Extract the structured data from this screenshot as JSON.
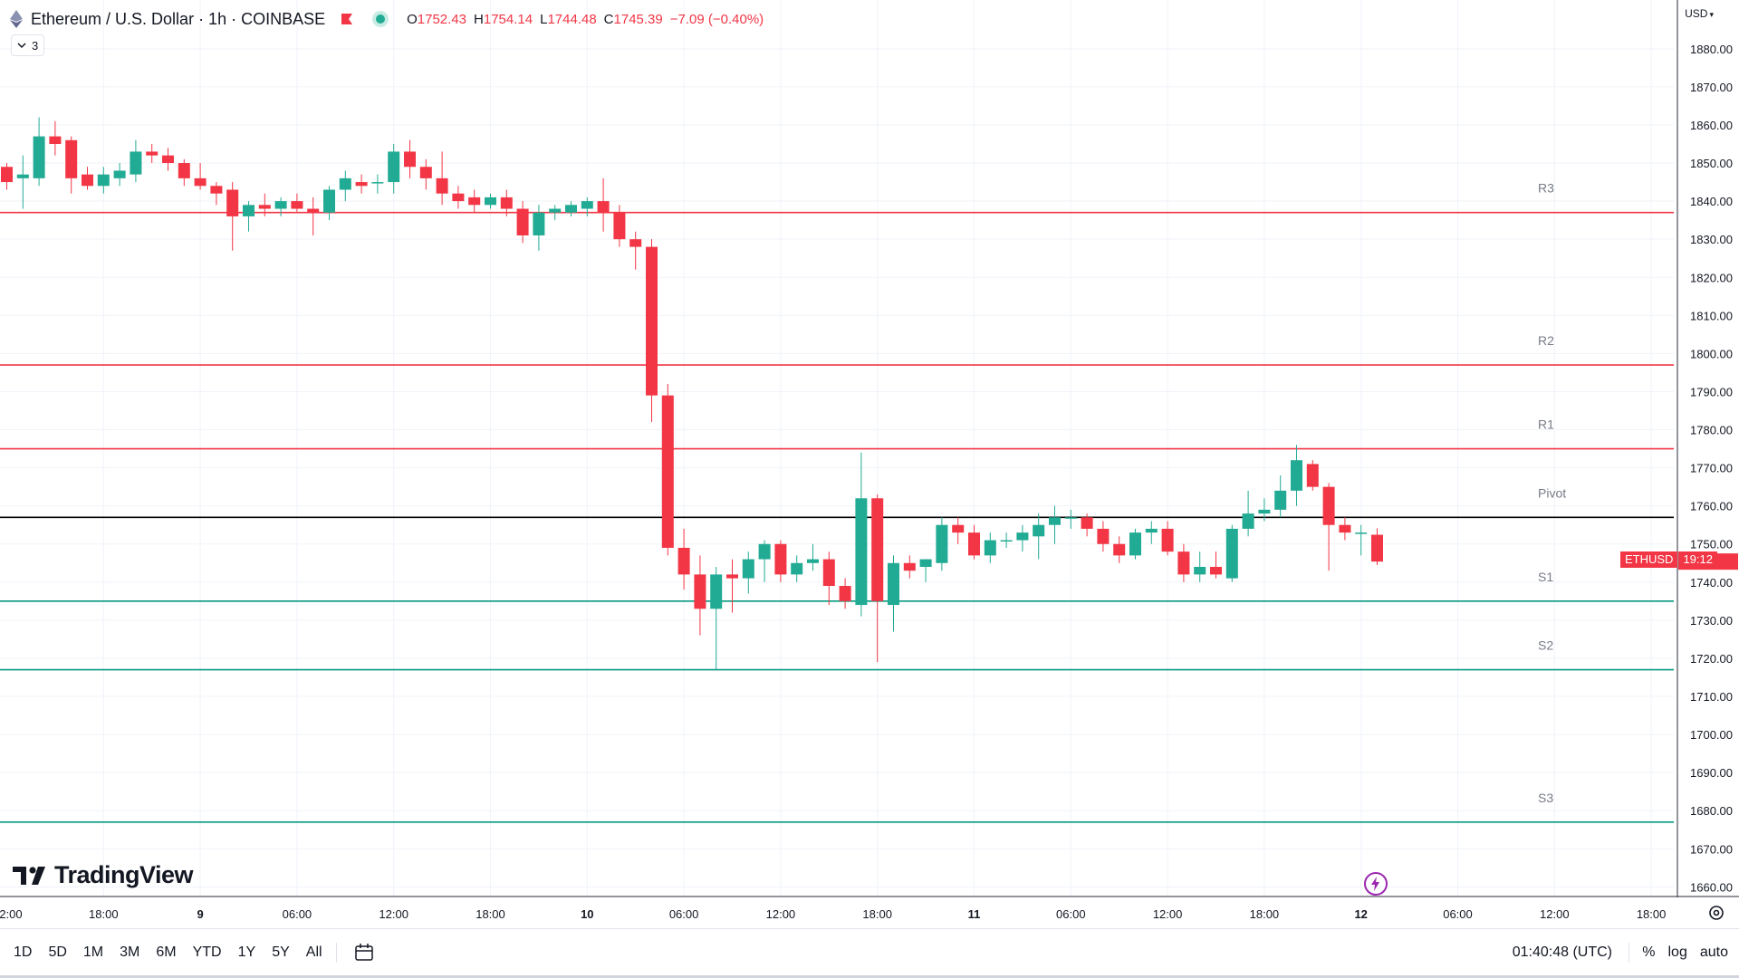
{
  "header": {
    "symbol_title": "Ethereum / U.S. Dollar · 1h · COINBASE",
    "ohlc": [
      {
        "k": "O",
        "v": "1752.43"
      },
      {
        "k": "H",
        "v": "1754.14"
      },
      {
        "k": "L",
        "v": "1744.48"
      },
      {
        "k": "C",
        "v": "1745.39"
      },
      {
        "k": "",
        "v": "−7.09 (−0.40%)"
      }
    ],
    "indicator_count": "3",
    "currency": "USD"
  },
  "price_tag": {
    "symbol": "ETHUSD",
    "time_to_close": "19:12"
  },
  "logo": "TradingView",
  "bottom": {
    "periods": [
      "1D",
      "5D",
      "1M",
      "3M",
      "6M",
      "YTD",
      "1Y",
      "5Y",
      "All"
    ],
    "clock": "01:40:48 (UTC)",
    "options": [
      "%",
      "log",
      "auto"
    ]
  },
  "colors": {
    "up": "#22ab94",
    "down": "#f23645",
    "resistance": "#f23645",
    "support": "#089981",
    "pivot": "#000000"
  },
  "chart_data": {
    "type": "candlestick",
    "x_ticks": [
      {
        "label": "2:00",
        "i": -10
      },
      {
        "label": "18:00",
        "i": 6
      },
      {
        "label": "9",
        "i": 12
      },
      {
        "label": "06:00",
        "i": 18
      },
      {
        "label": "12:00",
        "i": 24
      },
      {
        "label": "18:00",
        "i": 30
      },
      {
        "label": "10",
        "i": 36
      },
      {
        "label": "06:00",
        "i": 42
      },
      {
        "label": "12:00",
        "i": 48
      },
      {
        "label": "18:00",
        "i": 54
      },
      {
        "label": "11",
        "i": 60
      },
      {
        "label": "06:00",
        "i": 66
      },
      {
        "label": "12:00",
        "i": 72
      },
      {
        "label": "18:00",
        "i": 78
      },
      {
        "label": "12",
        "i": 84
      },
      {
        "label": "06:00",
        "i": 90
      },
      {
        "label": "12:00",
        "i": 96
      },
      {
        "label": "18:00",
        "i": 102
      }
    ],
    "y_ticks": [
      1660,
      1670,
      1680,
      1690,
      1700,
      1710,
      1720,
      1730,
      1740,
      1750,
      1760,
      1770,
      1780,
      1790,
      1800,
      1810,
      1820,
      1830,
      1840,
      1850,
      1860,
      1870,
      1880
    ],
    "ylim": [
      1657,
      1884
    ],
    "levels": [
      {
        "label": "R3",
        "value": 1837,
        "kind": "resistance"
      },
      {
        "label": "R2",
        "value": 1797,
        "kind": "resistance"
      },
      {
        "label": "R1",
        "value": 1775,
        "kind": "resistance"
      },
      {
        "label": "Pivot",
        "value": 1757,
        "kind": "pivot"
      },
      {
        "label": "S1",
        "value": 1735,
        "kind": "support"
      },
      {
        "label": "S2",
        "value": 1717,
        "kind": "support"
      },
      {
        "label": "S3",
        "value": 1677,
        "kind": "support"
      }
    ],
    "candles": [
      {
        "i": 0,
        "o": 1849,
        "h": 1850,
        "l": 1843,
        "c": 1845
      },
      {
        "i": 1,
        "o": 1846,
        "h": 1852,
        "l": 1838,
        "c": 1847
      },
      {
        "i": 2,
        "o": 1846,
        "h": 1862,
        "l": 1844,
        "c": 1857
      },
      {
        "i": 3,
        "o": 1857,
        "h": 1861,
        "l": 1852,
        "c": 1855
      },
      {
        "i": 4,
        "o": 1856,
        "h": 1857,
        "l": 1842,
        "c": 1846
      },
      {
        "i": 5,
        "o": 1847,
        "h": 1849,
        "l": 1843,
        "c": 1844
      },
      {
        "i": 6,
        "o": 1844,
        "h": 1849,
        "l": 1842,
        "c": 1847
      },
      {
        "i": 7,
        "o": 1846,
        "h": 1850,
        "l": 1844,
        "c": 1848
      },
      {
        "i": 8,
        "o": 1847,
        "h": 1856,
        "l": 1845,
        "c": 1853
      },
      {
        "i": 9,
        "o": 1853,
        "h": 1855,
        "l": 1850,
        "c": 1852
      },
      {
        "i": 10,
        "o": 1852,
        "h": 1854,
        "l": 1848,
        "c": 1850
      },
      {
        "i": 11,
        "o": 1850,
        "h": 1851,
        "l": 1844,
        "c": 1846
      },
      {
        "i": 12,
        "o": 1846,
        "h": 1850,
        "l": 1843,
        "c": 1844
      },
      {
        "i": 13,
        "o": 1844,
        "h": 1845,
        "l": 1839,
        "c": 1842
      },
      {
        "i": 14,
        "o": 1843,
        "h": 1845,
        "l": 1827,
        "c": 1836
      },
      {
        "i": 15,
        "o": 1836,
        "h": 1840,
        "l": 1832,
        "c": 1839
      },
      {
        "i": 16,
        "o": 1839,
        "h": 1842,
        "l": 1836,
        "c": 1838
      },
      {
        "i": 17,
        "o": 1838,
        "h": 1841,
        "l": 1836,
        "c": 1840
      },
      {
        "i": 18,
        "o": 1840,
        "h": 1842,
        "l": 1837,
        "c": 1838
      },
      {
        "i": 19,
        "o": 1838,
        "h": 1841,
        "l": 1831,
        "c": 1837
      },
      {
        "i": 20,
        "o": 1837,
        "h": 1844,
        "l": 1835,
        "c": 1843
      },
      {
        "i": 21,
        "o": 1843,
        "h": 1848,
        "l": 1840,
        "c": 1846
      },
      {
        "i": 22,
        "o": 1845,
        "h": 1847,
        "l": 1842,
        "c": 1844
      },
      {
        "i": 23,
        "o": 1845,
        "h": 1847,
        "l": 1842,
        "c": 1845
      },
      {
        "i": 24,
        "o": 1845,
        "h": 1855,
        "l": 1842,
        "c": 1853
      },
      {
        "i": 25,
        "o": 1853,
        "h": 1856,
        "l": 1846,
        "c": 1849
      },
      {
        "i": 26,
        "o": 1849,
        "h": 1851,
        "l": 1843,
        "c": 1846
      },
      {
        "i": 27,
        "o": 1846,
        "h": 1853,
        "l": 1839,
        "c": 1842
      },
      {
        "i": 28,
        "o": 1842,
        "h": 1844,
        "l": 1838,
        "c": 1840
      },
      {
        "i": 29,
        "o": 1841,
        "h": 1843,
        "l": 1837,
        "c": 1839
      },
      {
        "i": 30,
        "o": 1839,
        "h": 1842,
        "l": 1838,
        "c": 1841
      },
      {
        "i": 31,
        "o": 1841,
        "h": 1843,
        "l": 1836,
        "c": 1838
      },
      {
        "i": 32,
        "o": 1838,
        "h": 1840,
        "l": 1829,
        "c": 1831
      },
      {
        "i": 33,
        "o": 1831,
        "h": 1839,
        "l": 1827,
        "c": 1837
      },
      {
        "i": 34,
        "o": 1837,
        "h": 1839,
        "l": 1835,
        "c": 1838
      },
      {
        "i": 35,
        "o": 1837,
        "h": 1840,
        "l": 1836,
        "c": 1839
      },
      {
        "i": 36,
        "o": 1838,
        "h": 1841,
        "l": 1836,
        "c": 1840
      },
      {
        "i": 37,
        "o": 1840,
        "h": 1846,
        "l": 1832,
        "c": 1837
      },
      {
        "i": 38,
        "o": 1837,
        "h": 1839,
        "l": 1828,
        "c": 1830
      },
      {
        "i": 39,
        "o": 1830,
        "h": 1832,
        "l": 1822,
        "c": 1828
      },
      {
        "i": 40,
        "o": 1828,
        "h": 1830,
        "l": 1782,
        "c": 1789
      },
      {
        "i": 41,
        "o": 1789,
        "h": 1792,
        "l": 1747,
        "c": 1749
      },
      {
        "i": 42,
        "o": 1749,
        "h": 1754,
        "l": 1738,
        "c": 1742
      },
      {
        "i": 43,
        "o": 1742,
        "h": 1747,
        "l": 1726,
        "c": 1733
      },
      {
        "i": 44,
        "o": 1733,
        "h": 1744,
        "l": 1717,
        "c": 1742
      },
      {
        "i": 45,
        "o": 1742,
        "h": 1746,
        "l": 1732,
        "c": 1741
      },
      {
        "i": 46,
        "o": 1741,
        "h": 1748,
        "l": 1737,
        "c": 1746
      },
      {
        "i": 47,
        "o": 1746,
        "h": 1751,
        "l": 1740,
        "c": 1750
      },
      {
        "i": 48,
        "o": 1750,
        "h": 1751,
        "l": 1740,
        "c": 1742
      },
      {
        "i": 49,
        "o": 1742,
        "h": 1747,
        "l": 1740,
        "c": 1745
      },
      {
        "i": 50,
        "o": 1745,
        "h": 1750,
        "l": 1743,
        "c": 1746
      },
      {
        "i": 51,
        "o": 1746,
        "h": 1748,
        "l": 1734,
        "c": 1739
      },
      {
        "i": 52,
        "o": 1739,
        "h": 1741,
        "l": 1733,
        "c": 1735
      },
      {
        "i": 53,
        "o": 1734,
        "h": 1774,
        "l": 1731,
        "c": 1762
      },
      {
        "i": 54,
        "o": 1762,
        "h": 1763,
        "l": 1719,
        "c": 1735
      },
      {
        "i": 55,
        "o": 1734,
        "h": 1747,
        "l": 1727,
        "c": 1745
      },
      {
        "i": 56,
        "o": 1745,
        "h": 1747,
        "l": 1741,
        "c": 1743
      },
      {
        "i": 57,
        "o": 1744,
        "h": 1746,
        "l": 1740,
        "c": 1746
      },
      {
        "i": 58,
        "o": 1745,
        "h": 1757,
        "l": 1743,
        "c": 1755
      },
      {
        "i": 59,
        "o": 1755,
        "h": 1757,
        "l": 1750,
        "c": 1753
      },
      {
        "i": 60,
        "o": 1753,
        "h": 1755,
        "l": 1746,
        "c": 1747
      },
      {
        "i": 61,
        "o": 1747,
        "h": 1753,
        "l": 1745,
        "c": 1751
      },
      {
        "i": 62,
        "o": 1751,
        "h": 1753,
        "l": 1749,
        "c": 1751
      },
      {
        "i": 63,
        "o": 1751,
        "h": 1755,
        "l": 1748,
        "c": 1753
      },
      {
        "i": 64,
        "o": 1752,
        "h": 1758,
        "l": 1746,
        "c": 1755
      },
      {
        "i": 65,
        "o": 1755,
        "h": 1760,
        "l": 1750,
        "c": 1757
      },
      {
        "i": 66,
        "o": 1757,
        "h": 1759,
        "l": 1754,
        "c": 1757
      },
      {
        "i": 67,
        "o": 1757,
        "h": 1758,
        "l": 1752,
        "c": 1754
      },
      {
        "i": 68,
        "o": 1754,
        "h": 1756,
        "l": 1748,
        "c": 1750
      },
      {
        "i": 69,
        "o": 1750,
        "h": 1752,
        "l": 1745,
        "c": 1747
      },
      {
        "i": 70,
        "o": 1747,
        "h": 1754,
        "l": 1746,
        "c": 1753
      },
      {
        "i": 71,
        "o": 1753,
        "h": 1756,
        "l": 1750,
        "c": 1754
      },
      {
        "i": 72,
        "o": 1754,
        "h": 1756,
        "l": 1747,
        "c": 1748
      },
      {
        "i": 73,
        "o": 1748,
        "h": 1750,
        "l": 1740,
        "c": 1742
      },
      {
        "i": 74,
        "o": 1742,
        "h": 1748,
        "l": 1740,
        "c": 1744
      },
      {
        "i": 75,
        "o": 1744,
        "h": 1748,
        "l": 1741,
        "c": 1742
      },
      {
        "i": 76,
        "o": 1741,
        "h": 1755,
        "l": 1740,
        "c": 1754
      },
      {
        "i": 77,
        "o": 1754,
        "h": 1764,
        "l": 1752,
        "c": 1758
      },
      {
        "i": 78,
        "o": 1758,
        "h": 1762,
        "l": 1756,
        "c": 1759
      },
      {
        "i": 79,
        "o": 1759,
        "h": 1768,
        "l": 1757,
        "c": 1764
      },
      {
        "i": 80,
        "o": 1764,
        "h": 1776,
        "l": 1760,
        "c": 1772
      },
      {
        "i": 81,
        "o": 1771,
        "h": 1772,
        "l": 1764,
        "c": 1765
      },
      {
        "i": 82,
        "o": 1765,
        "h": 1766,
        "l": 1743,
        "c": 1755
      },
      {
        "i": 83,
        "o": 1755,
        "h": 1757,
        "l": 1751,
        "c": 1753
      },
      {
        "i": 84,
        "o": 1753,
        "h": 1755,
        "l": 1747,
        "c": 1753
      },
      {
        "i": 85,
        "o": 1752.43,
        "h": 1754.14,
        "l": 1744.48,
        "c": 1745.39
      }
    ]
  }
}
